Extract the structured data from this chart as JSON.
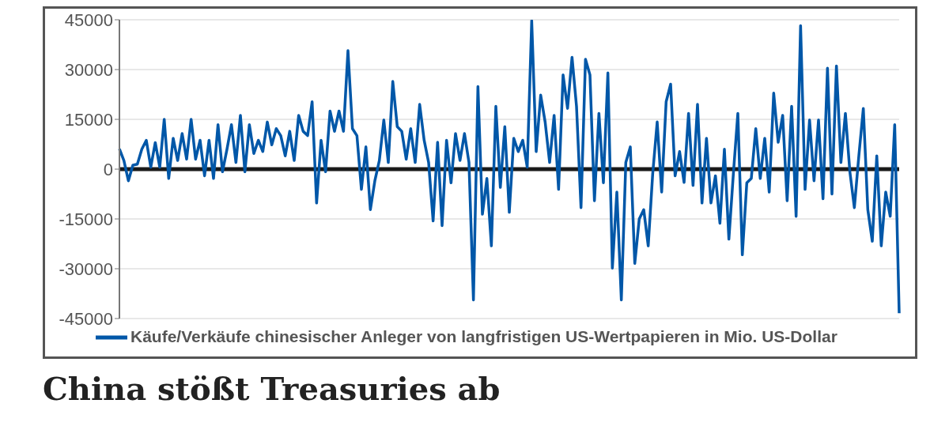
{
  "chart_data": {
    "type": "line",
    "title": "China stößt Treasuries ab",
    "categories": [
      null,
      null,
      null,
      null,
      null,
      null,
      null,
      null,
      null,
      null,
      null,
      null,
      null,
      null,
      null,
      null,
      null,
      null,
      null,
      null,
      null,
      null,
      null,
      null,
      null,
      null,
      null,
      null,
      null,
      null,
      null,
      null,
      null,
      null,
      null,
      null,
      null,
      null,
      null,
      null,
      null,
      null,
      null,
      null,
      null,
      null,
      null,
      null,
      null,
      null,
      null,
      null,
      null,
      null,
      null,
      null,
      null,
      null,
      null,
      null,
      null,
      null,
      null,
      null,
      null,
      null,
      null,
      null,
      null,
      null,
      null,
      null,
      null,
      null,
      null,
      null,
      null,
      null,
      null,
      null,
      null,
      null,
      null,
      null,
      null,
      null,
      null,
      null,
      null,
      null,
      null,
      null,
      null,
      null,
      null,
      null,
      null,
      null,
      null,
      null,
      null,
      null,
      null,
      null,
      null,
      null,
      null,
      null,
      null,
      null,
      null,
      null,
      null,
      null,
      null,
      null,
      null,
      null,
      null,
      null,
      null,
      null,
      null,
      null,
      null,
      null,
      null,
      null,
      null,
      null,
      null,
      null,
      null,
      null,
      null,
      null,
      null,
      null,
      null,
      null,
      null,
      null,
      null,
      null,
      null,
      null,
      null,
      null,
      null,
      null,
      null,
      null,
      null,
      null,
      null,
      null,
      null,
      null,
      null,
      null,
      null,
      null,
      null,
      null,
      null,
      null,
      null,
      null,
      null,
      null,
      null,
      null,
      null,
      null,
      null
    ],
    "series": [
      {
        "name": "Käufe/Verkäufe chinesischer Anleger von langfristigen US-Wertpapieren in Mio. US-Dollar",
        "color": "#0057a8",
        "values": [
          6100,
          2600,
          -3500,
          1200,
          1500,
          6000,
          8700,
          600,
          8000,
          600,
          15000,
          -2800,
          9300,
          2600,
          10700,
          3000,
          15000,
          3000,
          8700,
          -2000,
          8700,
          -2800,
          13400,
          -800,
          6000,
          13400,
          2000,
          16200,
          -800,
          13400,
          4700,
          8700,
          5300,
          14200,
          7300,
          12200,
          10100,
          4000,
          11400,
          2600,
          16200,
          11400,
          10100,
          20300,
          -10200,
          8700,
          -800,
          17500,
          11400,
          17500,
          11400,
          35700,
          12200,
          10100,
          -6100,
          6700,
          -12200,
          -3500,
          2600,
          14800,
          2000,
          26400,
          12800,
          11400,
          3000,
          12200,
          2000,
          19500,
          8700,
          2000,
          -15600,
          8100,
          -17000,
          8700,
          -4100,
          10700,
          2600,
          10700,
          2000,
          -39400,
          24900,
          -13600,
          -2800,
          -23100,
          18900,
          -5500,
          12800,
          -13000,
          9300,
          5300,
          8700,
          600,
          44700,
          5300,
          22300,
          14200,
          2000,
          16200,
          -6100,
          28400,
          18300,
          33700,
          18900,
          -11600,
          33100,
          28400,
          -9500,
          16800,
          -4100,
          29000,
          -29800,
          -6900,
          -39400,
          2000,
          6700,
          -28400,
          -15000,
          -12200,
          -23100,
          -1400,
          14200,
          -6900,
          20300,
          25600,
          -2000,
          5300,
          -4000,
          16800,
          -4900,
          19500,
          -10200,
          9300,
          -10200,
          -2000,
          -16300,
          6000,
          -21100,
          -1400,
          16800,
          -25800,
          -4100,
          -2800,
          12200,
          -2800,
          9300,
          -6900,
          22900,
          8100,
          16200,
          -9500,
          18900,
          -14200,
          43200,
          -6100,
          14800,
          -3500,
          14800,
          -8900,
          30400,
          -7500,
          31100,
          2000,
          16800,
          -800,
          -11600,
          4000,
          18300,
          -12200,
          -21700,
          4000,
          -23100,
          -6900,
          -14200,
          13400,
          -43400
        ]
      }
    ],
    "ylim": [
      -45000,
      45000
    ],
    "yticks": [
      -45000,
      -30000,
      -15000,
      0,
      15000,
      30000,
      45000
    ],
    "grid": "y",
    "legend": "bottom left",
    "ref_lines": [
      {
        "axis": "y",
        "value": 0,
        "color": "#1a1a1a"
      }
    ]
  }
}
